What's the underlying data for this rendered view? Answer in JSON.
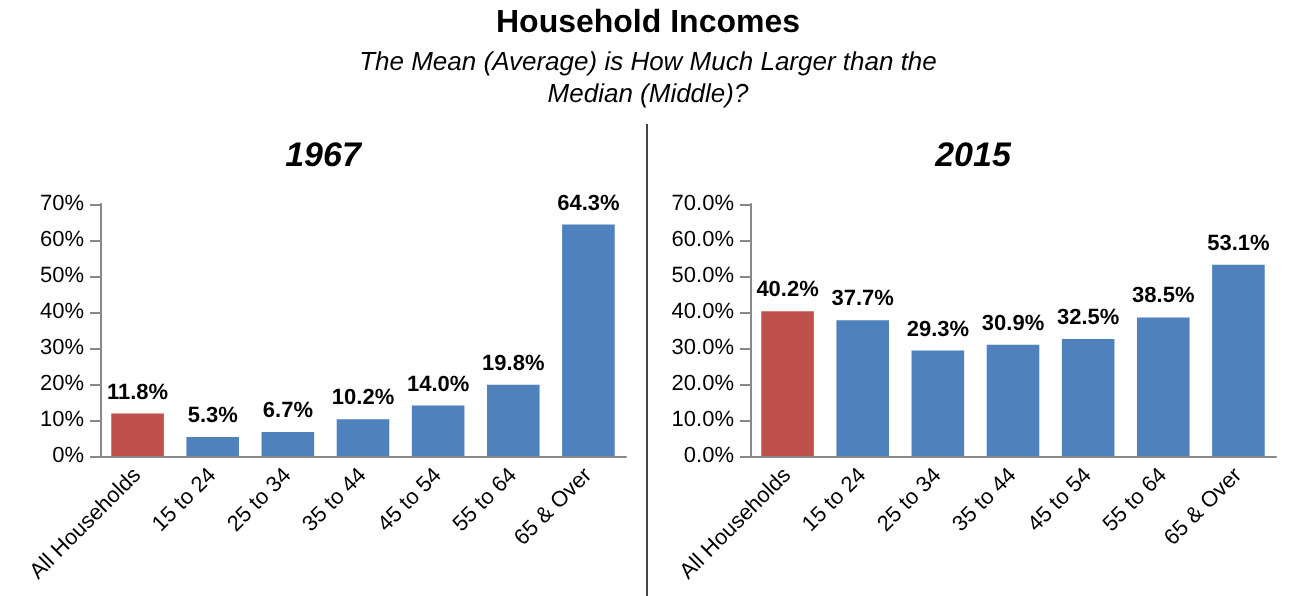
{
  "chart_data": [
    {
      "type": "other",
      "title": "Household Incomes",
      "subtitle": "The Mean (Average) is How Much Larger than the Median (Middle)?"
    },
    {
      "type": "bar",
      "title": "1967",
      "categories": [
        "All Households",
        "15 to 24",
        "25 to 34",
        "35 to 44",
        "45 to 54",
        "55 to 64",
        "65 & Over"
      ],
      "values": [
        11.8,
        5.3,
        6.7,
        10.2,
        14.0,
        19.8,
        64.3
      ],
      "colors": [
        "#c0504d",
        "#4f81bd",
        "#4f81bd",
        "#4f81bd",
        "#4f81bd",
        "#4f81bd",
        "#4f81bd"
      ],
      "value_labels": [
        "11.8%",
        "5.3%",
        "6.7%",
        "10.2%",
        "14.0%",
        "19.8%",
        "64.3%"
      ],
      "ylim": [
        0,
        70
      ],
      "yticks": [
        {
          "value": 0,
          "label": "0%"
        },
        {
          "value": 10,
          "label": "10%"
        },
        {
          "value": 20,
          "label": "20%"
        },
        {
          "value": 30,
          "label": "30%"
        },
        {
          "value": 40,
          "label": "40%"
        },
        {
          "value": 50,
          "label": "50%"
        },
        {
          "value": 60,
          "label": "60%"
        },
        {
          "value": 70,
          "label": "70%"
        }
      ]
    },
    {
      "type": "bar",
      "title": "2015",
      "categories": [
        "All Households",
        "15 to 24",
        "25 to 34",
        "35 to 44",
        "45 to 54",
        "55 to 64",
        "65 & Over"
      ],
      "values": [
        40.2,
        37.7,
        29.3,
        30.9,
        32.5,
        38.5,
        53.1
      ],
      "colors": [
        "#c0504d",
        "#4f81bd",
        "#4f81bd",
        "#4f81bd",
        "#4f81bd",
        "#4f81bd",
        "#4f81bd"
      ],
      "value_labels": [
        "40.2%",
        "37.7%",
        "29.3%",
        "30.9%",
        "32.5%",
        "38.5%",
        "53.1%"
      ],
      "ylim": [
        0,
        70
      ],
      "yticks": [
        {
          "value": 0,
          "label": "0.0%"
        },
        {
          "value": 10,
          "label": "10.0%"
        },
        {
          "value": 20,
          "label": "20.0%"
        },
        {
          "value": 30,
          "label": "30.0%"
        },
        {
          "value": 40,
          "label": "40.0%"
        },
        {
          "value": 50,
          "label": "50.0%"
        },
        {
          "value": 60,
          "label": "60.0%"
        },
        {
          "value": 70,
          "label": "70.0%"
        }
      ]
    }
  ]
}
